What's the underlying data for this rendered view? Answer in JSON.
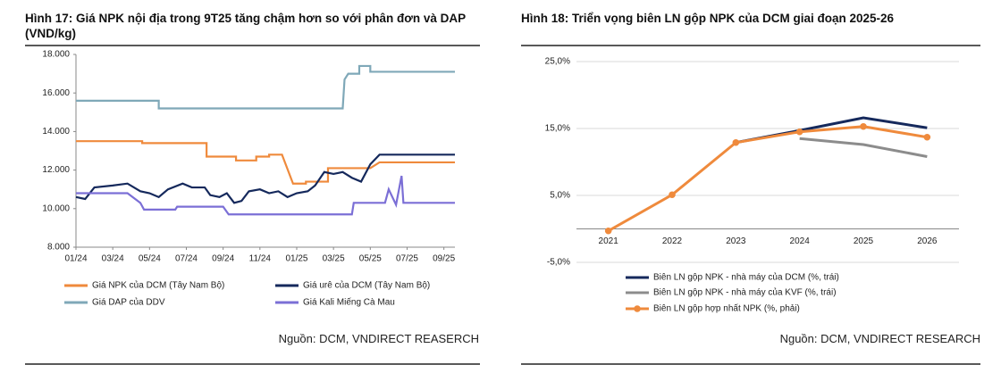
{
  "chart_data": [
    {
      "type": "line",
      "title": "Hình 17: Giá NPK nội địa trong 9T25 tăng chậm hơn so với phân đơn và DAP (VND/kg)",
      "source": "Nguồn: DCM, VNDIRECT REASERCH",
      "xlim": [
        0,
        20.6
      ],
      "xticks": [
        {
          "value": 0,
          "label": "01/24"
        },
        {
          "value": 2,
          "label": "03/24"
        },
        {
          "value": 4,
          "label": "05/24"
        },
        {
          "value": 6,
          "label": "07/24"
        },
        {
          "value": 8,
          "label": "09/24"
        },
        {
          "value": 10,
          "label": "11/24"
        },
        {
          "value": 12,
          "label": "01/25"
        },
        {
          "value": 14,
          "label": "03/25"
        },
        {
          "value": 16,
          "label": "05/25"
        },
        {
          "value": 18,
          "label": "07/25"
        },
        {
          "value": 20,
          "label": "09/25"
        }
      ],
      "ylim": [
        8000,
        18000
      ],
      "yticks": [
        {
          "value": 8000,
          "label": "8.000"
        },
        {
          "value": 10000,
          "label": "10.000"
        },
        {
          "value": 12000,
          "label": "12.000"
        },
        {
          "value": 14000,
          "label": "14.000"
        },
        {
          "value": 16000,
          "label": "16.000"
        },
        {
          "value": 18000,
          "label": "18.000"
        }
      ],
      "grid": false,
      "series": [
        {
          "name": "Giá NPK của DCM (Tây Nam Bộ)",
          "color": "#ef8a3c",
          "x": [
            0,
            3.6,
            3.6,
            7.1,
            7.1,
            8.7,
            8.7,
            9.8,
            9.8,
            10.5,
            10.5,
            11.2,
            11.4,
            11.8,
            11.8,
            12.5,
            12.5,
            13.7,
            13.7,
            16,
            16.5,
            20.6
          ],
          "values": [
            13500,
            13500,
            13400,
            13400,
            12700,
            12700,
            12500,
            12500,
            12700,
            12700,
            12800,
            12800,
            12300,
            11300,
            11300,
            11300,
            11400,
            11400,
            12100,
            12100,
            12400,
            12400
          ]
        },
        {
          "name": "Giá urê của DCM (Tây Nam Bộ)",
          "color": "#15295c",
          "x": [
            0,
            0.5,
            1,
            2,
            2.8,
            3.5,
            4,
            4.5,
            5,
            5.8,
            6.3,
            7,
            7.3,
            7.8,
            8.2,
            8.6,
            9,
            9.4,
            10,
            10.5,
            11,
            11.5,
            12,
            12.6,
            13,
            13.5,
            14,
            14.5,
            15,
            15.5,
            16,
            16.5,
            20.6
          ],
          "values": [
            10600,
            10500,
            11100,
            11200,
            11300,
            10900,
            10800,
            10600,
            11000,
            11300,
            11100,
            11100,
            10700,
            10600,
            10800,
            10300,
            10400,
            10900,
            11000,
            10800,
            10900,
            10600,
            10800,
            10900,
            11200,
            11900,
            11800,
            11900,
            11600,
            11400,
            12300,
            12800,
            12800
          ]
        },
        {
          "name": "Giá DAP của DDV",
          "color": "#7fa8b8",
          "x": [
            0,
            4.5,
            4.5,
            14.5,
            14.6,
            14.8,
            15.4,
            15.4,
            16,
            16,
            20.6
          ],
          "values": [
            15600,
            15600,
            15200,
            15200,
            16700,
            17000,
            17000,
            17400,
            17400,
            17100,
            17100
          ]
        },
        {
          "name": "Giá Kali Miếng Cà Mau",
          "color": "#7b6fd6",
          "x": [
            0,
            2.8,
            3.5,
            3.7,
            5.4,
            5.5,
            8,
            8.3,
            15,
            15.1,
            16.8,
            17,
            17.4,
            17.7,
            17.8,
            20.6
          ],
          "values": [
            10800,
            10800,
            10300,
            9950,
            9950,
            10100,
            10100,
            9700,
            9700,
            10300,
            10300,
            11000,
            10200,
            11700,
            10300,
            10300
          ]
        }
      ]
    },
    {
      "type": "line",
      "title": "Hình 18: Triển vọng biên LN gộp NPK của DCM giai đoạn 2025-26",
      "source": "Nguồn: DCM, VNDIRECT RESEARCH",
      "categories": [
        "2021",
        "2022",
        "2023",
        "2024",
        "2025",
        "2026"
      ],
      "ylim": [
        -5,
        25
      ],
      "yticks": [
        {
          "value": -5,
          "label": "-5,0%"
        },
        {
          "value": 5,
          "label": "5,0%"
        },
        {
          "value": 15,
          "label": "15,0%"
        },
        {
          "value": 25,
          "label": "25,0%"
        }
      ],
      "grid": true,
      "series": [
        {
          "name": "Biên LN gộp NPK - nhà máy của DCM (%, trái)",
          "color": "#15295c",
          "markers": false,
          "values": [
            null,
            null,
            12.9,
            14.7,
            16.6,
            15.1
          ]
        },
        {
          "name": "Biên LN gộp NPK - nhà máy của KVF (%, trái)",
          "color": "#8c8c8c",
          "markers": false,
          "values": [
            null,
            null,
            null,
            13.5,
            12.6,
            10.8
          ]
        },
        {
          "name": "Biên LN gộp hợp nhất NPK (%, phải)",
          "color": "#ef8a3c",
          "markers": true,
          "values": [
            -0.3,
            5.1,
            12.9,
            14.5,
            15.3,
            13.7
          ]
        }
      ]
    }
  ]
}
